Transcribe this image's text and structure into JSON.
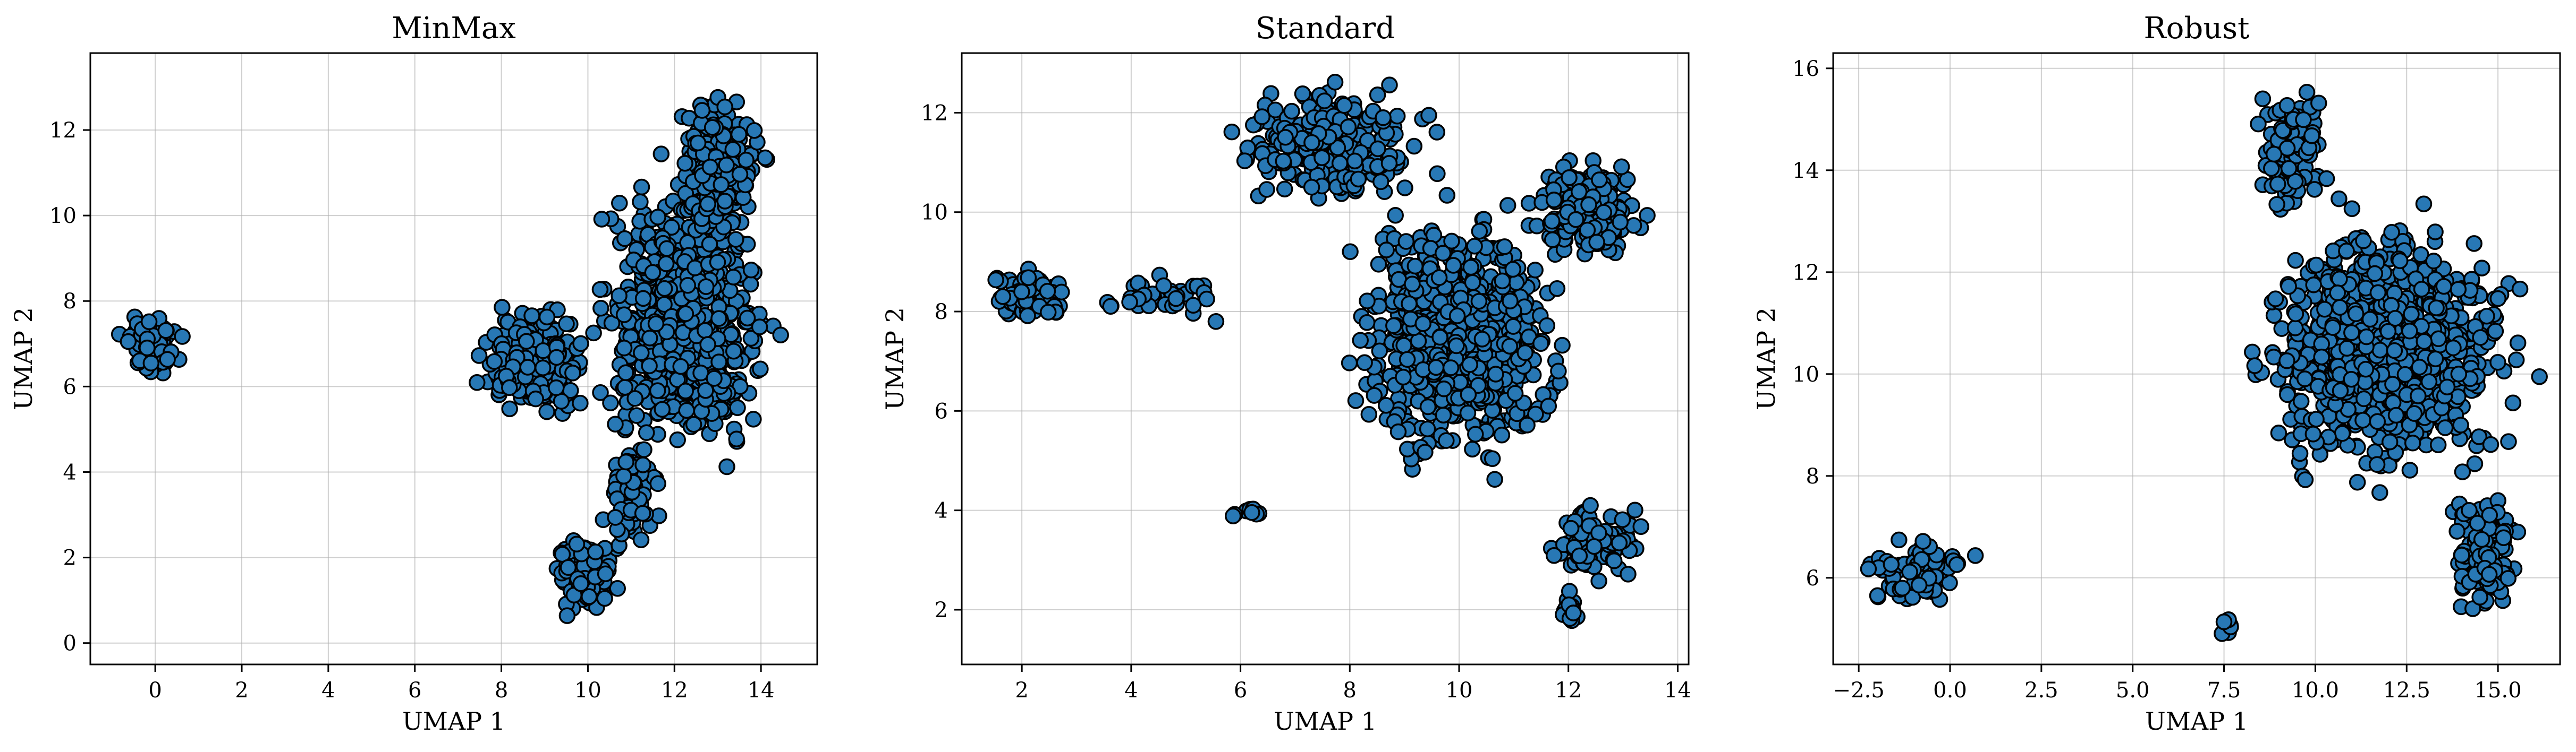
{
  "chart_data": [
    {
      "type": "scatter",
      "title": "MinMax",
      "xlabel": "UMAP 1",
      "ylabel": "UMAP 2",
      "xlim": [
        -1.5,
        15.3
      ],
      "ylim": [
        -0.5,
        13.8
      ],
      "xticks": [
        0,
        2,
        4,
        6,
        8,
        10,
        12,
        14
      ],
      "yticks": [
        0,
        2,
        4,
        6,
        8,
        10,
        12
      ],
      "xtick_labels": [
        "0",
        "2",
        "4",
        "6",
        "8",
        "10",
        "12",
        "14"
      ],
      "ytick_labels": [
        "0",
        "2",
        "4",
        "6",
        "8",
        "10",
        "12"
      ],
      "grid": true,
      "marker_color": "#2878b5",
      "clusters": [
        {
          "x": [
            -0.9,
            0.8
          ],
          "y": [
            6.1,
            7.8
          ],
          "n": 70
        },
        {
          "x": [
            7.3,
            10.2
          ],
          "y": [
            5.2,
            8.0
          ],
          "n": 220
        },
        {
          "x": [
            9.0,
            10.8
          ],
          "y": [
            0.2,
            2.8
          ],
          "n": 90
        },
        {
          "x": [
            10.2,
            11.8
          ],
          "y": [
            2.0,
            5.0
          ],
          "n": 80
        },
        {
          "x": [
            10.0,
            14.5
          ],
          "y": [
            3.8,
            11.5
          ],
          "n": 700
        },
        {
          "x": [
            11.8,
            14.2
          ],
          "y": [
            9.5,
            13.1
          ],
          "n": 250
        }
      ]
    },
    {
      "type": "scatter",
      "title": "Standard",
      "xlabel": "UMAP 1",
      "ylabel": "UMAP 2",
      "xlim": [
        0.9,
        14.2
      ],
      "ylim": [
        0.9,
        13.2
      ],
      "xticks": [
        2,
        4,
        6,
        8,
        10,
        12,
        14
      ],
      "yticks": [
        2,
        4,
        6,
        8,
        10,
        12
      ],
      "xtick_labels": [
        "2",
        "4",
        "6",
        "8",
        "10",
        "12",
        "14"
      ],
      "ytick_labels": [
        "2",
        "4",
        "6",
        "8",
        "10",
        "12"
      ],
      "grid": true,
      "marker_color": "#2878b5",
      "clusters": [
        {
          "x": [
            1.3,
            3.0
          ],
          "y": [
            7.7,
            9.0
          ],
          "n": 80
        },
        {
          "x": [
            3.2,
            5.8
          ],
          "y": [
            7.8,
            8.8
          ],
          "n": 45
        },
        {
          "x": [
            5.8,
            6.5
          ],
          "y": [
            3.8,
            4.1
          ],
          "n": 8
        },
        {
          "x": [
            5.7,
            9.6
          ],
          "y": [
            10.0,
            12.7
          ],
          "n": 260
        },
        {
          "x": [
            7.8,
            12.2
          ],
          "y": [
            4.5,
            10.5
          ],
          "n": 750
        },
        {
          "x": [
            11.2,
            13.5
          ],
          "y": [
            9.0,
            11.2
          ],
          "n": 220
        },
        {
          "x": [
            11.5,
            13.5
          ],
          "y": [
            2.5,
            4.2
          ],
          "n": 100
        },
        {
          "x": [
            11.8,
            12.2
          ],
          "y": [
            1.4,
            2.6
          ],
          "n": 15
        }
      ]
    },
    {
      "type": "scatter",
      "title": "Robust",
      "xlabel": "UMAP 1",
      "ylabel": "UMAP 2",
      "xlim": [
        -3.2,
        16.7
      ],
      "ylim": [
        4.3,
        16.3
      ],
      "xticks": [
        -2.5,
        0.0,
        2.5,
        5.0,
        7.5,
        10.0,
        12.5,
        15.0
      ],
      "yticks": [
        6,
        8,
        10,
        12,
        14,
        16
      ],
      "xtick_labels": [
        "−2.5",
        "0.0",
        "2.5",
        "5.0",
        "7.5",
        "10.0",
        "12.5",
        "15.0"
      ],
      "ytick_labels": [
        "6",
        "8",
        "10",
        "12",
        "14",
        "16"
      ],
      "grid": true,
      "marker_color": "#2878b5",
      "clusters": [
        {
          "x": [
            -2.6,
            0.8
          ],
          "y": [
            5.3,
            6.9
          ],
          "n": 90
        },
        {
          "x": [
            7.4,
            7.8
          ],
          "y": [
            4.8,
            5.3
          ],
          "n": 8
        },
        {
          "x": [
            8.3,
            10.5
          ],
          "y": [
            13.0,
            15.7
          ],
          "n": 120
        },
        {
          "x": [
            7.8,
            16.2
          ],
          "y": [
            7.5,
            13.5
          ],
          "n": 900
        },
        {
          "x": [
            13.5,
            15.8
          ],
          "y": [
            5.0,
            8.0
          ],
          "n": 120
        }
      ]
    }
  ]
}
